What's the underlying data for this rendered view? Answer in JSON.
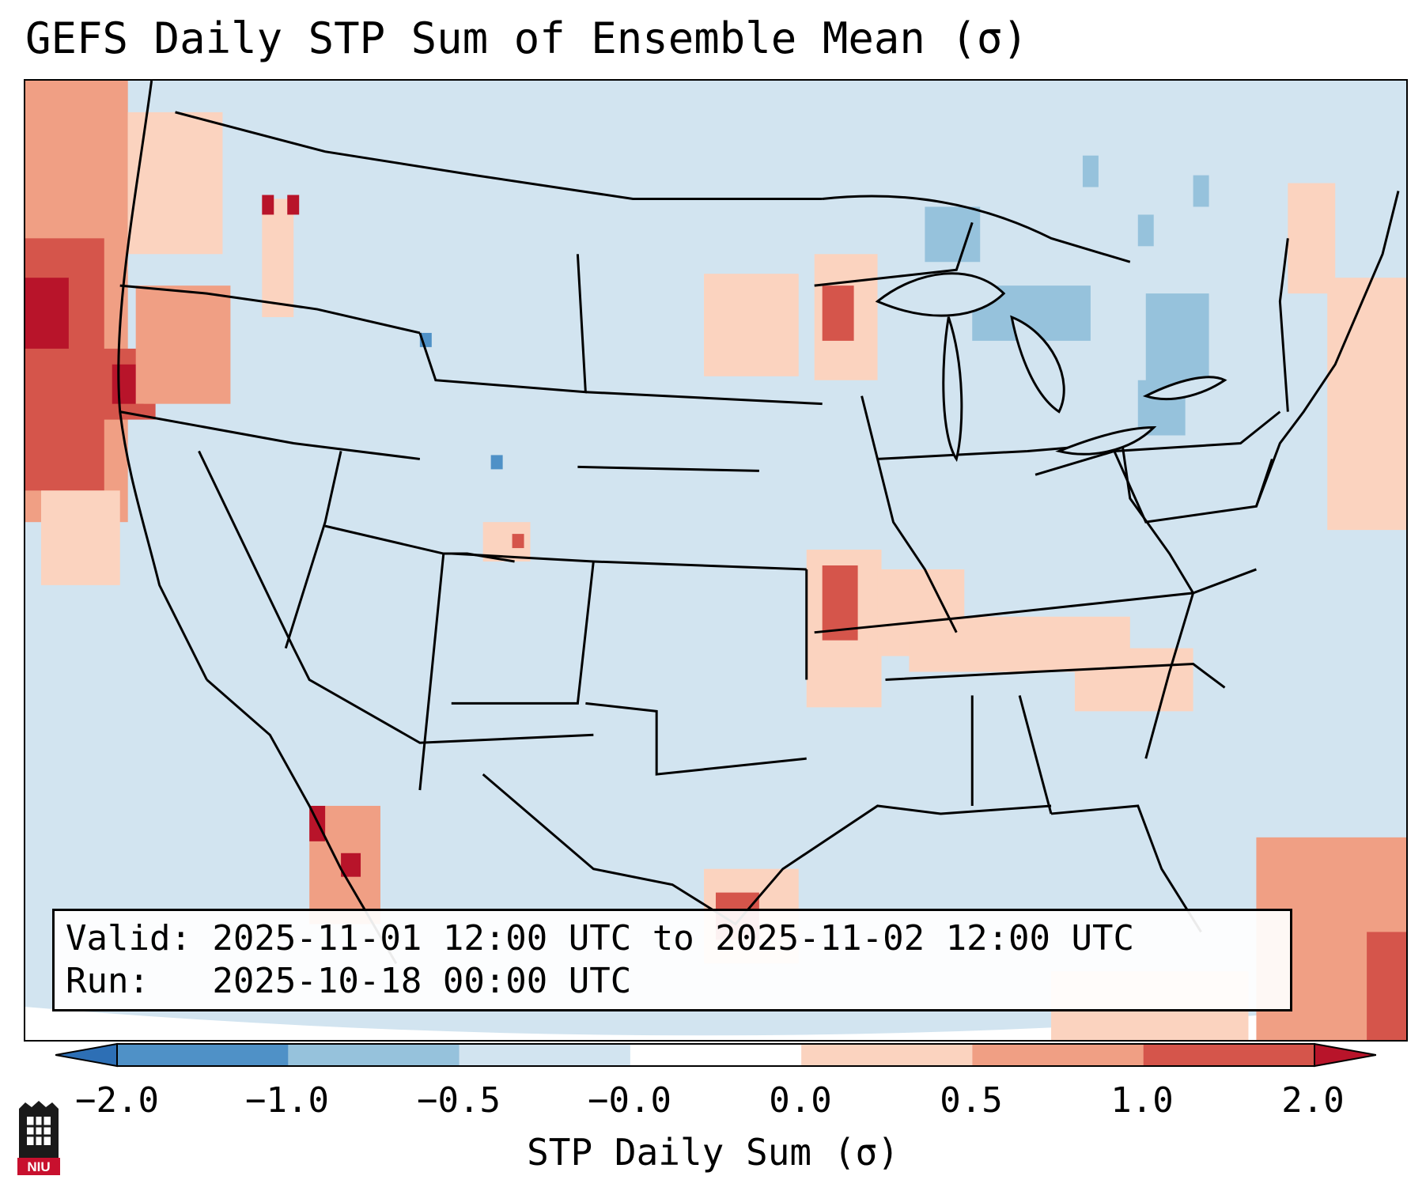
{
  "title": "GEFS Daily STP Sum of Ensemble Mean (σ)",
  "info": {
    "valid_line": "Valid: 2025-11-01 12:00 UTC to 2025-11-02 12:00 UTC",
    "run_line": "Run:   2025-10-18 00:00 UTC"
  },
  "colorbar": {
    "label": "STP Daily Sum (σ)",
    "ticks": [
      "−2.0",
      "−1.0",
      "−0.5",
      "−0.0",
      "0.0",
      "0.5",
      "1.0",
      "2.0"
    ],
    "colors": [
      "#2d6fb5",
      "#4f91c7",
      "#96c2dc",
      "#d2e4f0",
      "#ffffff",
      "#fbd3bf",
      "#f09f84",
      "#d5554b",
      "#b8142a"
    ],
    "extend": "both"
  },
  "logo_text": "NIU",
  "map": {
    "projection": "Lambert conformal, CONUS",
    "field": "STP daily sum anomaly (σ)",
    "background_bin": "−0.5 to −0.0",
    "notable_features": [
      {
        "region": "Pacific Northwest / N. California coast",
        "max_sigma": 2.0
      },
      {
        "region": "Arkansas / Mid-South",
        "max_sigma": 1.0
      },
      {
        "region": "Upper Texas coast",
        "max_sigma": 1.0
      },
      {
        "region": "Wisconsin",
        "max_sigma": 1.0
      },
      {
        "region": "Sierra Madre (Mexico)",
        "max_sigma": 2.0
      },
      {
        "region": "Great Lakes / New York",
        "min_sigma": -0.5
      }
    ]
  }
}
